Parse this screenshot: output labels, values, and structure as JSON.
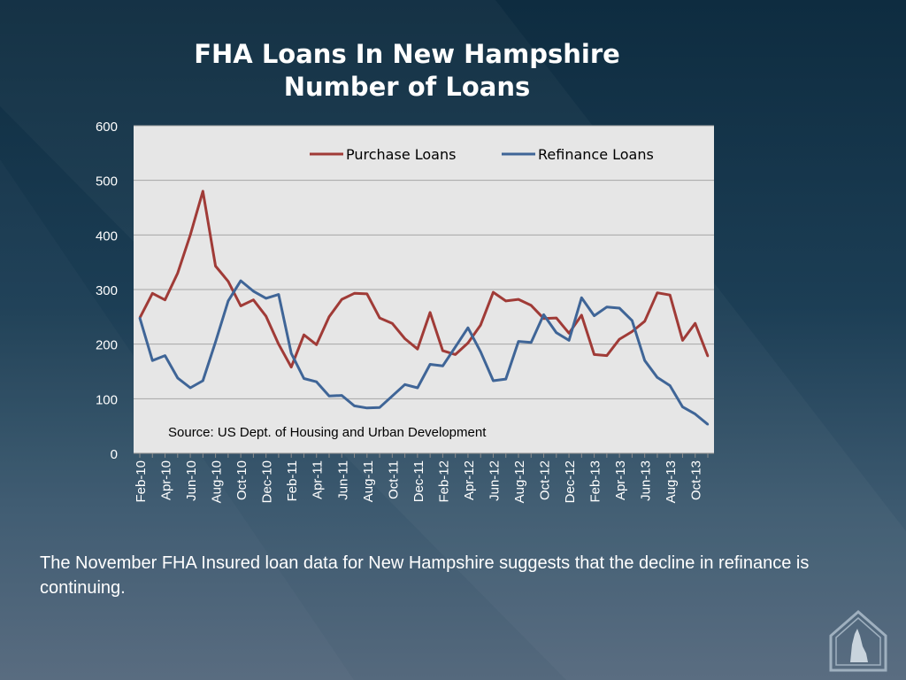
{
  "slide": {
    "title_line1": "FHA Loans In New Hampshire",
    "title_line2": "Number of Loans",
    "body_text": "The November FHA Insured loan data for New Hampshire suggests that the decline in refinance is continuing."
  },
  "colors": {
    "purchase": "#a03b37",
    "refinance": "#3f6597",
    "plot_bg": "#e6e6e6"
  },
  "chart_data": {
    "type": "line",
    "title": "",
    "xlabel": "",
    "ylabel": "",
    "ylim": [
      0,
      600
    ],
    "y_ticks": [
      "0",
      "100",
      "200",
      "300",
      "400",
      "500",
      "600"
    ],
    "grid": true,
    "legend_position": "top-right",
    "annotation": "Source: US Dept. of Housing and Urban Development",
    "x": [
      "Feb-10",
      "Mar-10",
      "Apr-10",
      "May-10",
      "Jun-10",
      "Jul-10",
      "Aug-10",
      "Sep-10",
      "Oct-10",
      "Nov-10",
      "Dec-10",
      "Jan-11",
      "Feb-11",
      "Mar-11",
      "Apr-11",
      "May-11",
      "Jun-11",
      "Jul-11",
      "Aug-11",
      "Sep-11",
      "Oct-11",
      "Nov-11",
      "Dec-11",
      "Jan-12",
      "Feb-12",
      "Mar-12",
      "Apr-12",
      "May-12",
      "Jun-12",
      "Jul-12",
      "Aug-12",
      "Sep-12",
      "Oct-12",
      "Nov-12",
      "Dec-12",
      "Jan-13",
      "Feb-13",
      "Mar-13",
      "Apr-13",
      "May-13",
      "Jun-13",
      "Jul-13",
      "Aug-13",
      "Sep-13",
      "Oct-13",
      "Nov-13"
    ],
    "x_tick_labels": [
      "Feb-10",
      "Apr-10",
      "Jun-10",
      "Aug-10",
      "Oct-10",
      "Dec-10",
      "Feb-11",
      "Apr-11",
      "Jun-11",
      "Aug-11",
      "Oct-11",
      "Dec-11",
      "Feb-12",
      "Apr-12",
      "Jun-12",
      "Aug-12",
      "Oct-12",
      "Dec-12",
      "Feb-13",
      "Apr-13",
      "Jun-13",
      "Aug-13",
      "Oct-13"
    ],
    "series": [
      {
        "name": "Purchase Loans",
        "values": [
          248,
          293,
          281,
          330,
          400,
          480,
          343,
          315,
          270,
          281,
          251,
          200,
          158,
          217,
          199,
          250,
          282,
          293,
          292,
          248,
          238,
          210,
          191,
          258,
          188,
          181,
          202,
          235,
          295,
          279,
          282,
          271,
          247,
          248,
          220,
          253,
          181,
          179,
          209,
          223,
          242,
          294,
          290,
          207,
          238,
          178
        ]
      },
      {
        "name": "Refinance Loans",
        "values": [
          248,
          170,
          179,
          138,
          120,
          133,
          204,
          279,
          316,
          297,
          284,
          291,
          183,
          137,
          131,
          105,
          106,
          87,
          83,
          84,
          105,
          126,
          120,
          163,
          160,
          195,
          230,
          186,
          133,
          136,
          205,
          203,
          254,
          221,
          207,
          285,
          252,
          268,
          266,
          243,
          170,
          139,
          124,
          85,
          72,
          53
        ]
      }
    ]
  }
}
